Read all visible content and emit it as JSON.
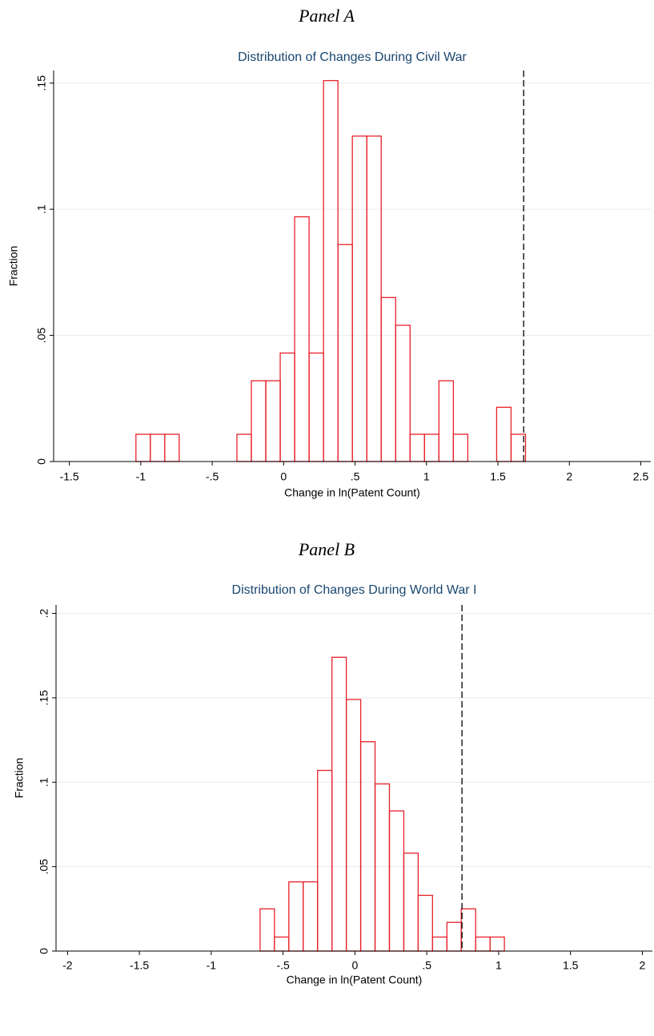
{
  "chart_data": [
    {
      "type": "histogram",
      "panel": "Panel A",
      "title": "Distribution of Changes During Civil War",
      "xlabel": "Change in ln(Patent Count)",
      "ylabel": "Fraction",
      "color": "#e8212b",
      "grid": true,
      "bins": [
        -1.034,
        -0.933,
        -0.832,
        -0.731,
        -0.63,
        -0.529,
        -0.428,
        -0.327,
        -0.226,
        -0.125,
        -0.024,
        0.077,
        0.178,
        0.279,
        0.38,
        0.481,
        0.582,
        0.683,
        0.784,
        0.885,
        0.986,
        1.087,
        1.188,
        1.289,
        1.39,
        1.491,
        1.592,
        1.693
      ],
      "values": [
        0.0108,
        0.0108,
        0.0108,
        0,
        0,
        0,
        0,
        0.0108,
        0.032,
        0.032,
        0.043,
        0.097,
        0.043,
        0.151,
        0.086,
        0.129,
        0.129,
        0.065,
        0.054,
        0.0108,
        0.0108,
        0.032,
        0.0108,
        0,
        0,
        0.0215,
        0.0108
      ],
      "vline": 1.68,
      "xlim": [
        -1.61,
        2.57
      ],
      "ylim": [
        0,
        0.155
      ],
      "xticks": [
        -1.5,
        -1,
        {
          "value": -0.5,
          "label": "-.5"
        },
        0,
        {
          "value": 0.5,
          "label": ".5"
        },
        1,
        1.5,
        2,
        2.5
      ],
      "yticks": [
        0,
        {
          "value": 0.05,
          "label": ".05"
        },
        {
          "value": 0.1,
          "label": ".1"
        },
        {
          "value": 0.15,
          "label": ".15"
        }
      ]
    },
    {
      "type": "histogram",
      "panel": "Panel B",
      "title": "Distribution of Changes During World War I",
      "xlabel": "Change in ln(Patent Count)",
      "ylabel": "Fraction",
      "color": "#e8212b",
      "grid": true,
      "bins": [
        -0.66,
        -0.56,
        -0.46,
        -0.36,
        -0.26,
        -0.16,
        -0.06,
        0.04,
        0.14,
        0.24,
        0.34,
        0.44,
        0.54,
        0.64,
        0.74,
        0.84,
        0.94,
        1.04
      ],
      "values": [
        0.025,
        0.0083,
        0.041,
        0.041,
        0.107,
        0.174,
        0.149,
        0.124,
        0.099,
        0.083,
        0.058,
        0.033,
        0.0083,
        0.017,
        0.025,
        0.0083,
        0.0083
      ],
      "vline": 0.745,
      "xlim": [
        -2.08,
        2.07
      ],
      "ylim": [
        0,
        0.205
      ],
      "xticks": [
        -2,
        -1.5,
        -1,
        {
          "value": -0.5,
          "label": "-.5"
        },
        0,
        {
          "value": 0.5,
          "label": ".5"
        },
        1,
        1.5,
        2
      ],
      "yticks": [
        0,
        {
          "value": 0.05,
          "label": ".05"
        },
        {
          "value": 0.1,
          "label": ".1"
        },
        {
          "value": 0.15,
          "label": ".15"
        },
        {
          "value": 0.2,
          "label": ".2"
        }
      ]
    }
  ]
}
